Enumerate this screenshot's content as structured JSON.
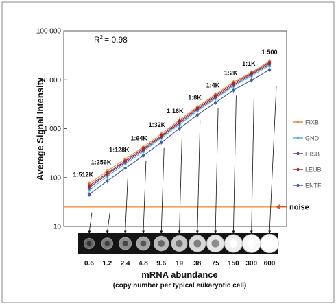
{
  "chart_data": {
    "type": "line",
    "yscale": "log",
    "ylim": [
      10,
      100000
    ],
    "ylabel": "Average Signal Intensity",
    "xlabel": "mRNA abundance",
    "xlabel_sub": "(copy number per typical eukaryotic cell)",
    "y_ticks": [
      {
        "value": 10,
        "label": "10"
      },
      {
        "value": 100,
        "label": "100"
      },
      {
        "value": 1000,
        "label": "1 000"
      },
      {
        "value": 10000,
        "label": "10 000"
      },
      {
        "value": 100000,
        "label": "100 000"
      }
    ],
    "categories": [
      "0.6",
      "1.2",
      "2.4",
      "4.8",
      "9.6",
      "19",
      "38",
      "75",
      "150",
      "300",
      "600"
    ],
    "dilutions": [
      "1:512K",
      "1:256K",
      "1:128K",
      "1:64K",
      "1:32K",
      "1:16K",
      "1:8K",
      "1:4K",
      "1:2K",
      "1:1K",
      "1:500"
    ],
    "r2_prefix": "R",
    "r2_sup": "2",
    "r2_value": "= 0.98",
    "noise_label": "noise",
    "noise_level": 25,
    "series": [
      {
        "name": "FIXB",
        "color": "#f08a4b",
        "values": [
          75,
          135,
          240,
          420,
          780,
          1500,
          2800,
          5000,
          9000,
          14000,
          24000
        ]
      },
      {
        "name": "GND",
        "color": "#57b8d6",
        "values": [
          55,
          105,
          190,
          340,
          640,
          1200,
          2300,
          4100,
          7400,
          12000,
          19500
        ]
      },
      {
        "name": "HISB",
        "color": "#6b3d8c",
        "values": [
          62,
          115,
          205,
          365,
          680,
          1300,
          2450,
          4400,
          7800,
          12800,
          21000
        ]
      },
      {
        "name": "LEUB",
        "color": "#a52a2a",
        "values": [
          68,
          122,
          220,
          390,
          720,
          1400,
          2600,
          4700,
          8400,
          13500,
          22500
        ]
      },
      {
        "name": "ENTF",
        "color": "#3f5fb0",
        "values": [
          45,
          85,
          155,
          280,
          520,
          1000,
          1900,
          3400,
          6100,
          9800,
          16000
        ]
      }
    ],
    "spot_intensity": [
      0.22,
      0.3,
      0.4,
      0.52,
      0.63,
      0.72,
      0.8,
      0.87,
      0.92,
      0.96,
      1.0
    ],
    "grid": false,
    "legend_position": "right"
  }
}
